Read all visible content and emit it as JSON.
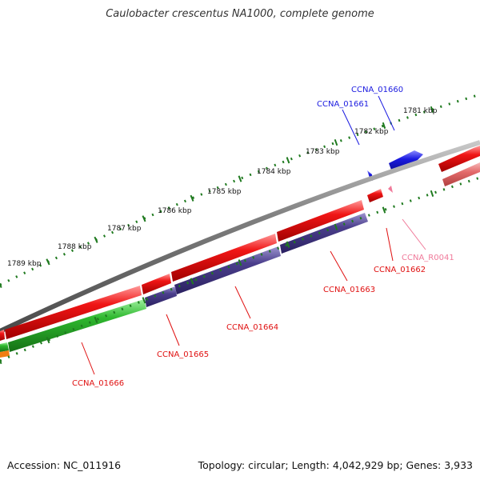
{
  "header": {
    "title": "Caulobacter crescentus NA1000, complete genome"
  },
  "footer": {
    "accession": "Accession: NC_011916",
    "summary": "Topology: circular; Length: 4,042,929 bp; Genes: 3,933"
  },
  "colors": {
    "ruler": "#1f7a1f",
    "backbone": "#7f7f7f",
    "gene_red": "#e01010",
    "gene_blue": "#1a1ae0",
    "gene_purple": "#4b3f8c",
    "gene_green": "#2fb82f",
    "gene_orange": "#f07d10",
    "gene_pink": "#f07a9a",
    "gene_faded_red": "#e36a6a"
  },
  "ruler_labels": [
    "1781 kbp",
    "1782 kbp",
    "1783 kbp",
    "1784 kbp",
    "1785 kbp",
    "1786 kbp",
    "1787 kbp",
    "1788 kbp",
    "1789 kbp"
  ],
  "genes": [
    {
      "name": "CCNA_01660",
      "color": "blue"
    },
    {
      "name": "CCNA_01661",
      "color": "blue"
    },
    {
      "name": "CCNA_01662",
      "color": "red"
    },
    {
      "name": "CCNA_01663",
      "color": "red"
    },
    {
      "name": "CCNA_01664",
      "color": "red"
    },
    {
      "name": "CCNA_01665",
      "color": "red"
    },
    {
      "name": "CCNA_01666",
      "color": "red"
    },
    {
      "name": "CCNA_R0041",
      "color": "pink"
    }
  ]
}
